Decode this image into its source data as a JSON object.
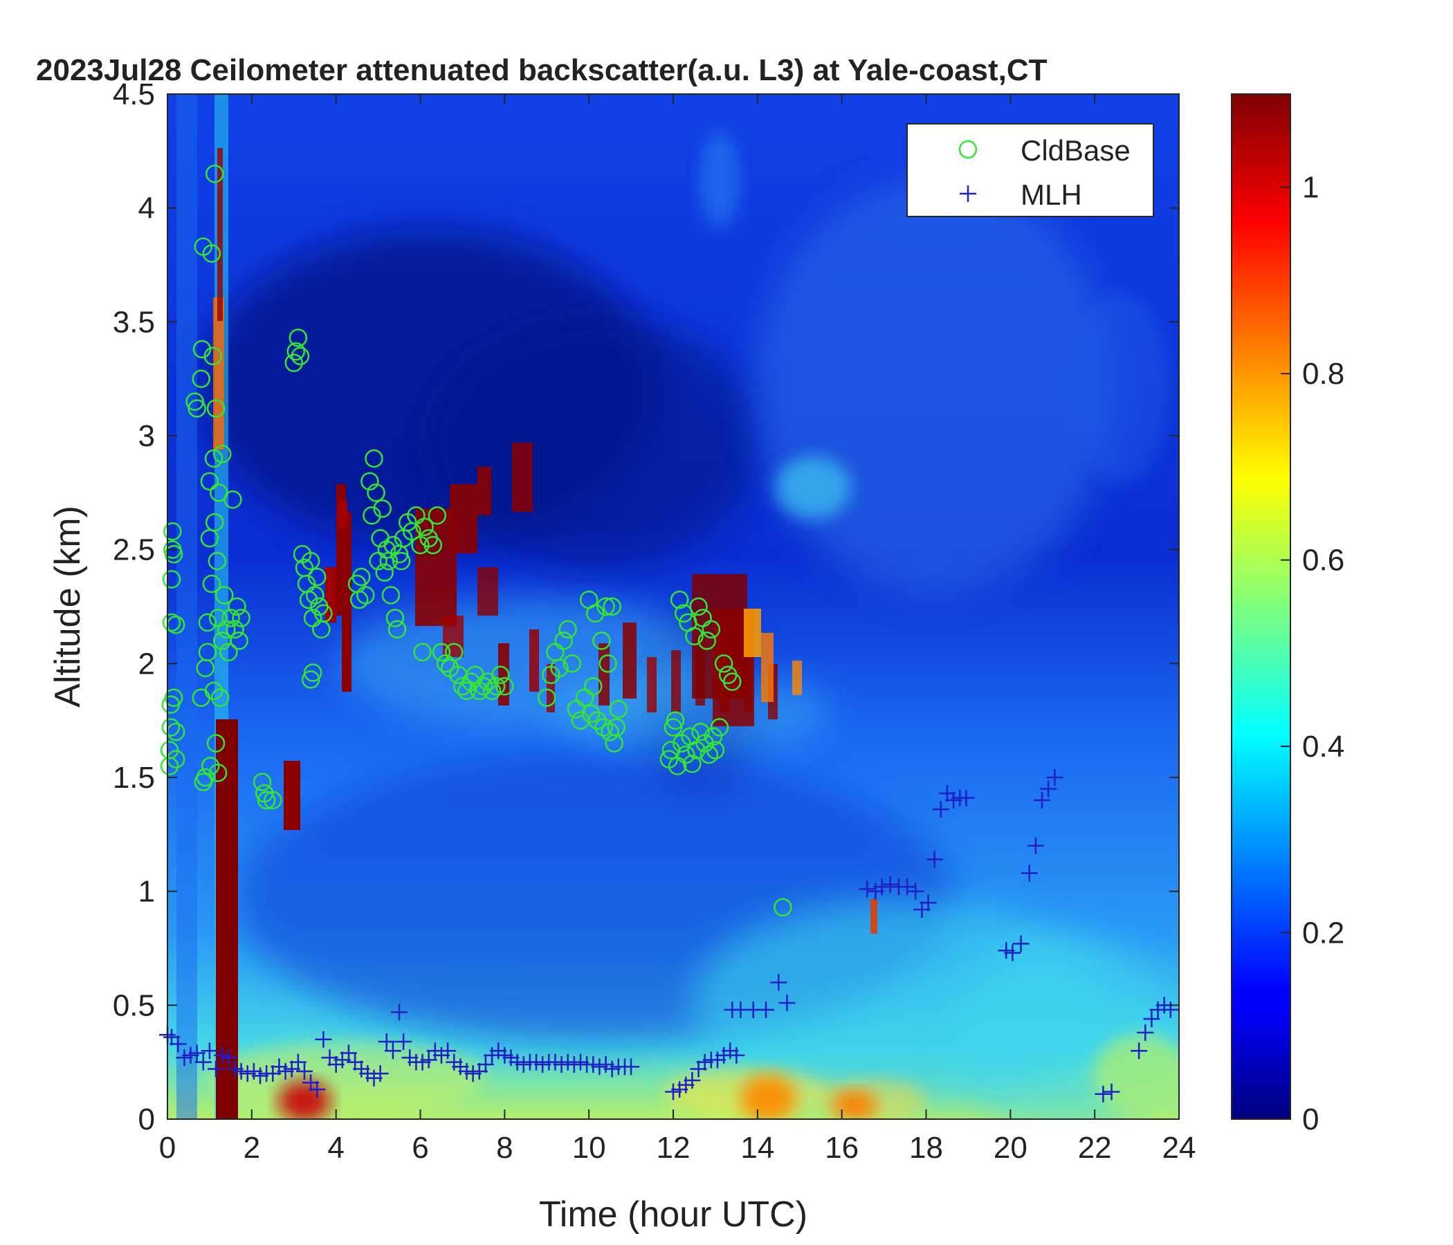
{
  "chart_data": {
    "type": "heatmap",
    "title": "2023Jul28 Ceilometer attenuated backscatter(a.u. L3) at Yale-coast,CT",
    "xlabel": "Time (hour UTC)",
    "ylabel": "Altitude (km)",
    "xlim": [
      0,
      24
    ],
    "ylim": [
      0,
      4.5
    ],
    "x_ticks": [
      "0",
      "2",
      "4",
      "6",
      "8",
      "10",
      "12",
      "14",
      "16",
      "18",
      "20",
      "22",
      "24"
    ],
    "y_ticks": [
      "0",
      "0.5",
      "1",
      "1.5",
      "2",
      "2.5",
      "3",
      "3.5",
      "4",
      "4.5"
    ],
    "colorbar": {
      "colormap": "jet",
      "range": [
        0,
        1.1
      ],
      "ticks": [
        "0",
        "0.2",
        "0.4",
        "0.6",
        "0.8",
        "1"
      ]
    },
    "grid": false,
    "legend_position": "top-right",
    "series": [
      {
        "name": "CldBase",
        "marker": "circle",
        "color": "#33e633",
        "points": [
          [
            0.05,
            1.55
          ],
          [
            0.05,
            1.62
          ],
          [
            0.08,
            1.72
          ],
          [
            0.08,
            1.82
          ],
          [
            0.1,
            2.18
          ],
          [
            0.1,
            2.37
          ],
          [
            0.12,
            2.5
          ],
          [
            0.12,
            2.58
          ],
          [
            0.15,
            1.85
          ],
          [
            0.15,
            2.48
          ],
          [
            0.2,
            1.58
          ],
          [
            0.2,
            2.17
          ],
          [
            0.2,
            1.7
          ],
          [
            0.65,
            3.15
          ],
          [
            0.7,
            3.12
          ],
          [
            0.8,
            1.85
          ],
          [
            0.8,
            3.25
          ],
          [
            0.82,
            3.38
          ],
          [
            0.85,
            1.48
          ],
          [
            0.85,
            3.83
          ],
          [
            0.9,
            1.98
          ],
          [
            0.9,
            1.5
          ],
          [
            0.95,
            2.18
          ],
          [
            0.95,
            2.05
          ],
          [
            1.0,
            2.55
          ],
          [
            1.0,
            2.8
          ],
          [
            1.02,
            1.55
          ],
          [
            1.05,
            3.8
          ],
          [
            1.05,
            2.35
          ],
          [
            1.08,
            3.35
          ],
          [
            1.1,
            1.88
          ],
          [
            1.1,
            2.9
          ],
          [
            1.12,
            4.15
          ],
          [
            1.12,
            2.62
          ],
          [
            1.15,
            1.65
          ],
          [
            1.15,
            3.12
          ],
          [
            1.18,
            2.45
          ],
          [
            1.2,
            1.52
          ],
          [
            1.2,
            2.2
          ],
          [
            1.22,
            2.75
          ],
          [
            1.25,
            1.85
          ],
          [
            1.3,
            2.1
          ],
          [
            1.3,
            2.92
          ],
          [
            1.35,
            2.3
          ],
          [
            1.4,
            2.15
          ],
          [
            1.45,
            2.05
          ],
          [
            1.5,
            2.2
          ],
          [
            1.55,
            2.72
          ],
          [
            1.6,
            2.15
          ],
          [
            1.65,
            2.25
          ],
          [
            1.7,
            2.1
          ],
          [
            1.75,
            2.2
          ],
          [
            2.25,
            1.48
          ],
          [
            2.3,
            1.43
          ],
          [
            2.35,
            1.4
          ],
          [
            2.5,
            1.4
          ],
          [
            3.0,
            3.32
          ],
          [
            3.05,
            3.37
          ],
          [
            3.1,
            3.43
          ],
          [
            3.15,
            3.35
          ],
          [
            3.2,
            2.48
          ],
          [
            3.25,
            2.42
          ],
          [
            3.3,
            2.35
          ],
          [
            3.35,
            2.28
          ],
          [
            3.4,
            2.45
          ],
          [
            3.45,
            2.2
          ],
          [
            3.5,
            2.3
          ],
          [
            3.55,
            2.38
          ],
          [
            3.6,
            2.25
          ],
          [
            3.65,
            2.15
          ],
          [
            3.7,
            2.22
          ],
          [
            3.4,
            1.93
          ],
          [
            3.45,
            1.96
          ],
          [
            4.5,
            2.35
          ],
          [
            4.55,
            2.28
          ],
          [
            4.6,
            2.38
          ],
          [
            4.7,
            2.3
          ],
          [
            4.8,
            2.8
          ],
          [
            4.85,
            2.65
          ],
          [
            4.9,
            2.9
          ],
          [
            4.95,
            2.75
          ],
          [
            5.0,
            2.45
          ],
          [
            5.05,
            2.55
          ],
          [
            5.1,
            2.68
          ],
          [
            5.15,
            2.4
          ],
          [
            5.2,
            2.5
          ],
          [
            5.25,
            2.45
          ],
          [
            5.3,
            2.3
          ],
          [
            5.35,
            2.52
          ],
          [
            5.4,
            2.2
          ],
          [
            5.45,
            2.15
          ],
          [
            5.5,
            2.48
          ],
          [
            5.55,
            2.45
          ],
          [
            5.6,
            2.55
          ],
          [
            5.7,
            2.62
          ],
          [
            5.8,
            2.58
          ],
          [
            5.9,
            2.65
          ],
          [
            6.0,
            2.52
          ],
          [
            6.05,
            2.05
          ],
          [
            6.1,
            2.6
          ],
          [
            6.2,
            2.55
          ],
          [
            6.3,
            2.52
          ],
          [
            6.4,
            2.65
          ],
          [
            6.5,
            2.05
          ],
          [
            6.6,
            2.0
          ],
          [
            6.7,
            1.98
          ],
          [
            6.8,
            2.05
          ],
          [
            6.9,
            1.95
          ],
          [
            7.0,
            1.9
          ],
          [
            7.1,
            1.88
          ],
          [
            7.2,
            1.92
          ],
          [
            7.3,
            1.95
          ],
          [
            7.4,
            1.88
          ],
          [
            7.5,
            1.9
          ],
          [
            7.6,
            1.92
          ],
          [
            7.7,
            1.88
          ],
          [
            7.8,
            1.9
          ],
          [
            7.9,
            1.95
          ],
          [
            8.0,
            1.9
          ],
          [
            9.0,
            1.85
          ],
          [
            9.1,
            1.95
          ],
          [
            9.2,
            2.05
          ],
          [
            9.3,
            1.98
          ],
          [
            9.4,
            2.1
          ],
          [
            9.5,
            2.15
          ],
          [
            9.6,
            2.0
          ],
          [
            9.7,
            1.8
          ],
          [
            9.8,
            1.75
          ],
          [
            9.9,
            1.85
          ],
          [
            10.0,
            2.28
          ],
          [
            10.05,
            1.78
          ],
          [
            10.1,
            1.9
          ],
          [
            10.15,
            2.22
          ],
          [
            10.2,
            1.75
          ],
          [
            10.3,
            2.1
          ],
          [
            10.35,
            1.72
          ],
          [
            10.4,
            2.25
          ],
          [
            10.45,
            2.0
          ],
          [
            10.5,
            1.7
          ],
          [
            10.55,
            2.25
          ],
          [
            10.6,
            1.65
          ],
          [
            10.65,
            1.72
          ],
          [
            10.7,
            1.8
          ],
          [
            11.9,
            1.58
          ],
          [
            11.95,
            1.62
          ],
          [
            12.0,
            1.72
          ],
          [
            12.05,
            1.75
          ],
          [
            12.1,
            1.55
          ],
          [
            12.15,
            2.28
          ],
          [
            12.2,
            1.65
          ],
          [
            12.25,
            2.22
          ],
          [
            12.3,
            1.6
          ],
          [
            12.35,
            2.18
          ],
          [
            12.4,
            1.68
          ],
          [
            12.45,
            1.56
          ],
          [
            12.5,
            2.12
          ],
          [
            12.55,
            1.62
          ],
          [
            12.6,
            2.25
          ],
          [
            12.65,
            1.7
          ],
          [
            12.7,
            2.2
          ],
          [
            12.75,
            1.65
          ],
          [
            12.8,
            2.1
          ],
          [
            12.85,
            1.6
          ],
          [
            12.9,
            2.15
          ],
          [
            12.95,
            1.68
          ],
          [
            13.0,
            1.62
          ],
          [
            13.1,
            1.72
          ],
          [
            13.2,
            2.0
          ],
          [
            13.3,
            1.95
          ],
          [
            13.4,
            1.92
          ],
          [
            14.6,
            0.93
          ]
        ]
      },
      {
        "name": "MLH",
        "marker": "plus",
        "color": "#1f1fc8",
        "points": [
          [
            0.0,
            0.37
          ],
          [
            0.1,
            0.36
          ],
          [
            0.25,
            0.33
          ],
          [
            0.4,
            0.27
          ],
          [
            0.55,
            0.28
          ],
          [
            0.7,
            0.29
          ],
          [
            0.85,
            0.25
          ],
          [
            1.0,
            0.3
          ],
          [
            1.15,
            0.22
          ],
          [
            1.3,
            0.28
          ],
          [
            1.45,
            0.27
          ],
          [
            1.6,
            0.22
          ],
          [
            1.75,
            0.21
          ],
          [
            1.9,
            0.2
          ],
          [
            2.05,
            0.21
          ],
          [
            2.2,
            0.19
          ],
          [
            2.35,
            0.2
          ],
          [
            2.5,
            0.2
          ],
          [
            2.65,
            0.23
          ],
          [
            2.8,
            0.21
          ],
          [
            2.95,
            0.22
          ],
          [
            3.1,
            0.25
          ],
          [
            3.25,
            0.21
          ],
          [
            3.4,
            0.16
          ],
          [
            3.55,
            0.13
          ],
          [
            3.7,
            0.35
          ],
          [
            3.85,
            0.27
          ],
          [
            4.0,
            0.24
          ],
          [
            4.15,
            0.26
          ],
          [
            4.3,
            0.29
          ],
          [
            4.45,
            0.25
          ],
          [
            4.6,
            0.22
          ],
          [
            4.75,
            0.2
          ],
          [
            4.9,
            0.18
          ],
          [
            5.05,
            0.2
          ],
          [
            5.2,
            0.34
          ],
          [
            5.35,
            0.3
          ],
          [
            5.5,
            0.47
          ],
          [
            5.6,
            0.34
          ],
          [
            5.75,
            0.27
          ],
          [
            5.9,
            0.25
          ],
          [
            6.05,
            0.25
          ],
          [
            6.2,
            0.26
          ],
          [
            6.35,
            0.3
          ],
          [
            6.5,
            0.28
          ],
          [
            6.65,
            0.3
          ],
          [
            6.8,
            0.25
          ],
          [
            6.95,
            0.23
          ],
          [
            7.1,
            0.21
          ],
          [
            7.25,
            0.2
          ],
          [
            7.4,
            0.21
          ],
          [
            7.55,
            0.24
          ],
          [
            7.7,
            0.28
          ],
          [
            7.85,
            0.3
          ],
          [
            8.0,
            0.28
          ],
          [
            8.15,
            0.27
          ],
          [
            8.3,
            0.25
          ],
          [
            8.45,
            0.24
          ],
          [
            8.6,
            0.25
          ],
          [
            8.75,
            0.25
          ],
          [
            8.9,
            0.24
          ],
          [
            9.05,
            0.25
          ],
          [
            9.2,
            0.25
          ],
          [
            9.35,
            0.24
          ],
          [
            9.5,
            0.25
          ],
          [
            9.65,
            0.24
          ],
          [
            9.8,
            0.25
          ],
          [
            9.95,
            0.24
          ],
          [
            10.1,
            0.24
          ],
          [
            10.25,
            0.23
          ],
          [
            10.4,
            0.24
          ],
          [
            10.55,
            0.22
          ],
          [
            10.7,
            0.23
          ],
          [
            10.85,
            0.23
          ],
          [
            11.0,
            0.23
          ],
          [
            12.0,
            0.12
          ],
          [
            12.15,
            0.13
          ],
          [
            12.3,
            0.15
          ],
          [
            12.45,
            0.17
          ],
          [
            12.6,
            0.22
          ],
          [
            12.75,
            0.25
          ],
          [
            12.9,
            0.26
          ],
          [
            13.05,
            0.26
          ],
          [
            13.2,
            0.28
          ],
          [
            13.35,
            0.3
          ],
          [
            13.5,
            0.28
          ],
          [
            13.4,
            0.48
          ],
          [
            13.6,
            0.48
          ],
          [
            13.9,
            0.48
          ],
          [
            14.2,
            0.48
          ],
          [
            14.5,
            0.6
          ],
          [
            14.7,
            0.51
          ],
          [
            16.6,
            1.01
          ],
          [
            16.8,
            1.0
          ],
          [
            16.95,
            1.02
          ],
          [
            17.15,
            1.03
          ],
          [
            17.35,
            1.02
          ],
          [
            17.55,
            1.02
          ],
          [
            17.75,
            1.0
          ],
          [
            17.9,
            0.92
          ],
          [
            18.05,
            0.95
          ],
          [
            18.2,
            1.14
          ],
          [
            18.35,
            1.36
          ],
          [
            18.5,
            1.43
          ],
          [
            18.65,
            1.4
          ],
          [
            18.8,
            1.41
          ],
          [
            18.95,
            1.41
          ],
          [
            19.9,
            0.74
          ],
          [
            20.05,
            0.73
          ],
          [
            20.25,
            0.77
          ],
          [
            20.45,
            1.08
          ],
          [
            20.6,
            1.2
          ],
          [
            20.75,
            1.4
          ],
          [
            20.9,
            1.45
          ],
          [
            21.05,
            1.5
          ],
          [
            22.2,
            0.11
          ],
          [
            22.4,
            0.12
          ],
          [
            23.05,
            0.3
          ],
          [
            23.2,
            0.38
          ],
          [
            23.35,
            0.44
          ],
          [
            23.5,
            0.48
          ],
          [
            23.65,
            0.5
          ],
          [
            23.8,
            0.48
          ]
        ]
      }
    ]
  }
}
